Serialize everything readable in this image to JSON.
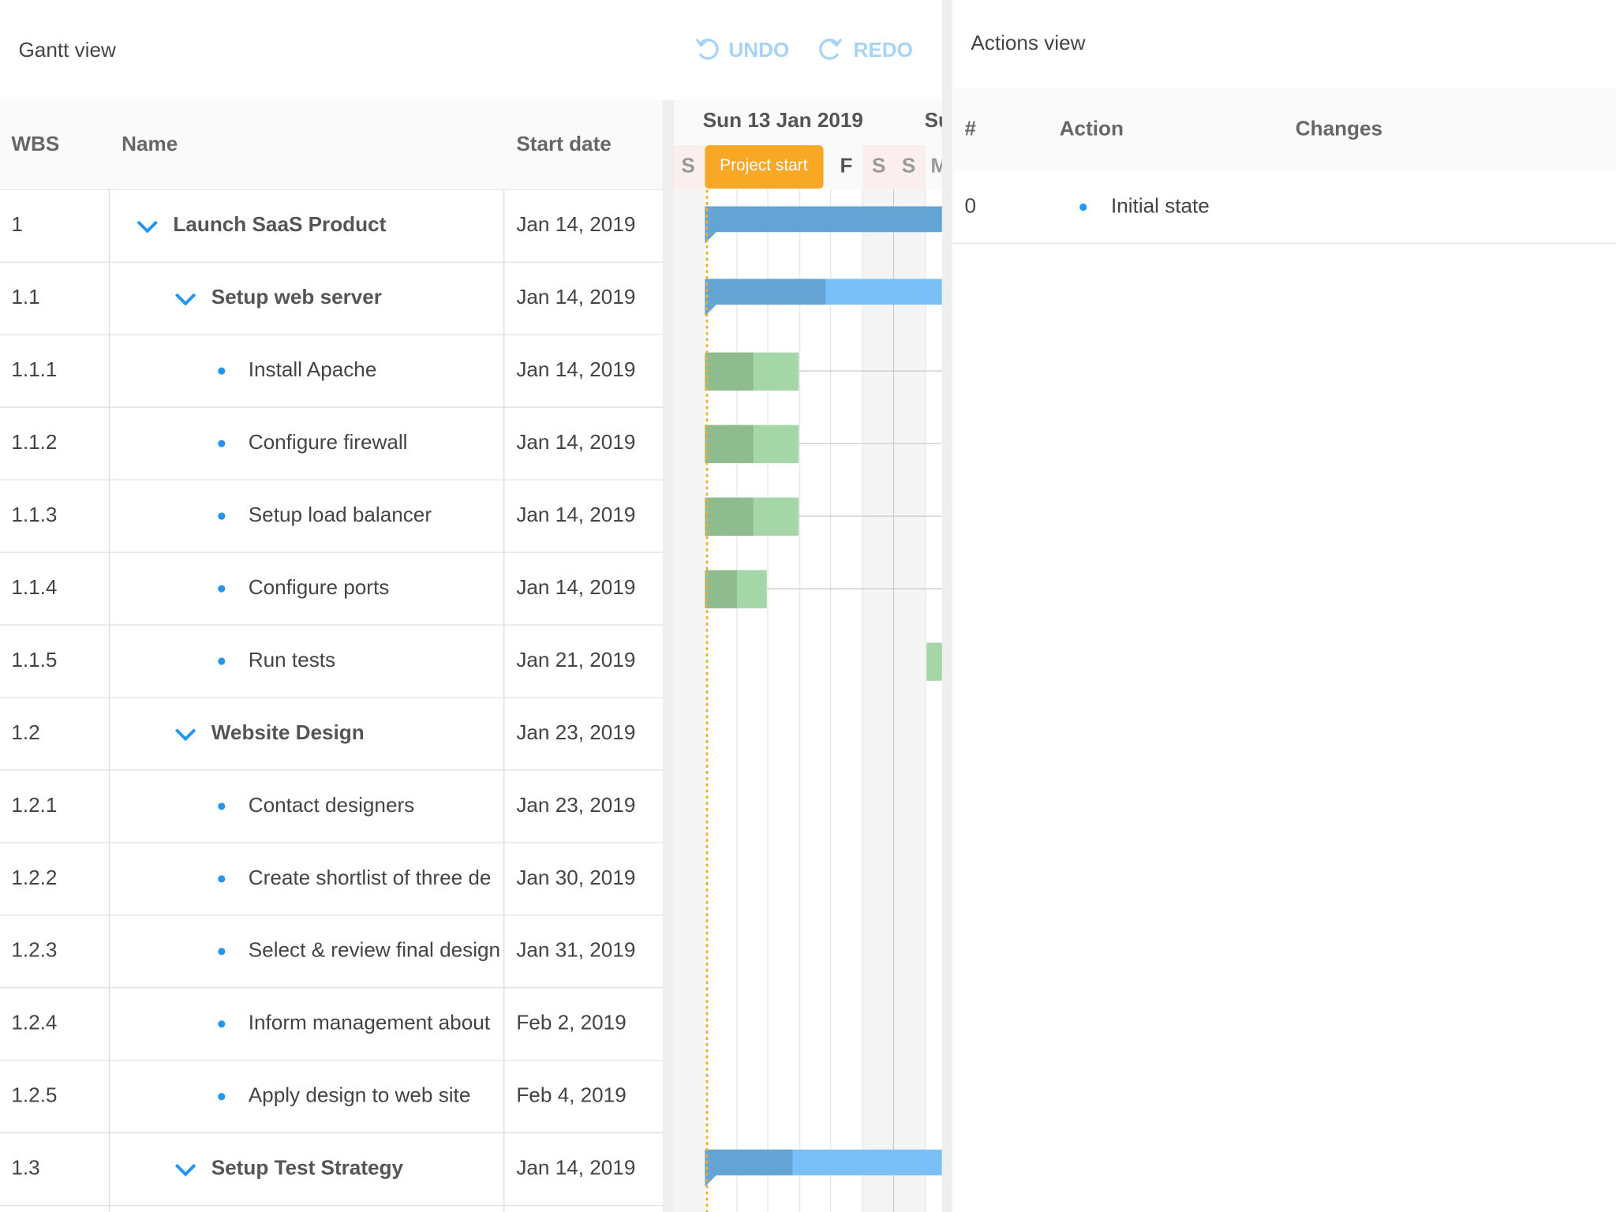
{
  "gantt": {
    "title": "Gantt view",
    "undo": "UNDO",
    "redo": "REDO",
    "columns": [
      "WBS",
      "Name",
      "Start date"
    ],
    "rows": [
      {
        "wbs": "1",
        "name": "Launch SaaS Product",
        "start": "Jan 14, 2019"
      },
      {
        "wbs": "1.1",
        "name": "Setup web server",
        "start": "Jan 14, 2019"
      },
      {
        "wbs": "1.1.1",
        "name": "Install Apache",
        "start": "Jan 14, 2019"
      },
      {
        "wbs": "1.1.2",
        "name": "Configure firewall",
        "start": "Jan 14, 2019"
      },
      {
        "wbs": "1.1.3",
        "name": "Setup load balancer",
        "start": "Jan 14, 2019"
      },
      {
        "wbs": "1.1.4",
        "name": "Configure ports",
        "start": "Jan 14, 2019"
      },
      {
        "wbs": "1.1.5",
        "name": "Run tests",
        "start": "Jan 21, 2019"
      },
      {
        "wbs": "1.2",
        "name": "Website Design",
        "start": "Jan 23, 2019"
      },
      {
        "wbs": "1.2.1",
        "name": "Contact designers",
        "start": "Jan 23, 2019"
      },
      {
        "wbs": "1.2.2",
        "name": "Create shortlist of three de",
        "start": "Jan 30, 2019"
      },
      {
        "wbs": "1.2.3",
        "name": "Select & review final design",
        "start": "Jan 31, 2019"
      },
      {
        "wbs": "1.2.4",
        "name": "Inform management about",
        "start": "Feb 2, 2019"
      },
      {
        "wbs": "1.2.5",
        "name": "Apply design to web site",
        "start": "Feb 4, 2019"
      },
      {
        "wbs": "1.3",
        "name": "Setup Test Strategy",
        "start": "Jan 14, 2019"
      }
    ],
    "timeline": {
      "header": "Sun 13 Jan 2019",
      "next_header": "Su",
      "days": [
        "S",
        "F",
        "S",
        "S",
        "M"
      ],
      "marker": "Project start"
    }
  },
  "actions": {
    "title": "Actions view",
    "columns": [
      "#",
      "Action",
      "Changes"
    ],
    "rows": [
      {
        "index": "0",
        "action": "Initial state"
      }
    ]
  }
}
